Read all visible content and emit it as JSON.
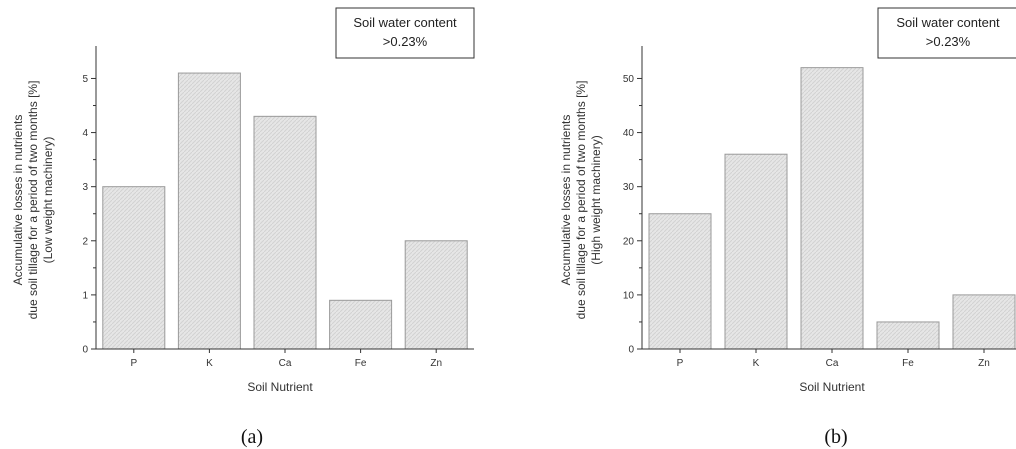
{
  "chart_data": [
    {
      "type": "bar",
      "panel_label": "(a)",
      "categories": [
        "P",
        "K",
        "Ca",
        "Fe",
        "Zn"
      ],
      "values": [
        3.0,
        5.1,
        4.3,
        0.9,
        2.0
      ],
      "xlabel": "Soil Nutrient",
      "ylabel_lines": [
        "Accumulative losses in nutrients",
        "due soil tillage for a period of two months [%]",
        "(Low weight machinery)"
      ],
      "ylim": [
        0,
        5.6
      ],
      "yticks": [
        0,
        1,
        2,
        3,
        4,
        5
      ],
      "legend_lines": [
        "Soil water content",
        ">0.23%"
      ],
      "legend_position": "top-right",
      "grid": false,
      "bar_fill": "#e4e4e4",
      "bar_stroke": "#9a9a9a"
    },
    {
      "type": "bar",
      "panel_label": "(b)",
      "categories": [
        "P",
        "K",
        "Ca",
        "Fe",
        "Zn"
      ],
      "values": [
        25,
        36,
        52,
        5,
        10
      ],
      "xlabel": "Soil Nutrient",
      "ylabel_lines": [
        "Accumulative losses in nutrients",
        "due soil tillage for a period of two months [%]",
        "(High weight machinery)"
      ],
      "ylim": [
        0,
        56
      ],
      "yticks": [
        0,
        10,
        20,
        30,
        40,
        50
      ],
      "legend_lines": [
        "Soil water content",
        ">0.23%"
      ],
      "legend_position": "top-right",
      "grid": false,
      "bar_fill": "#e4e4e4",
      "bar_stroke": "#9a9a9a"
    }
  ]
}
